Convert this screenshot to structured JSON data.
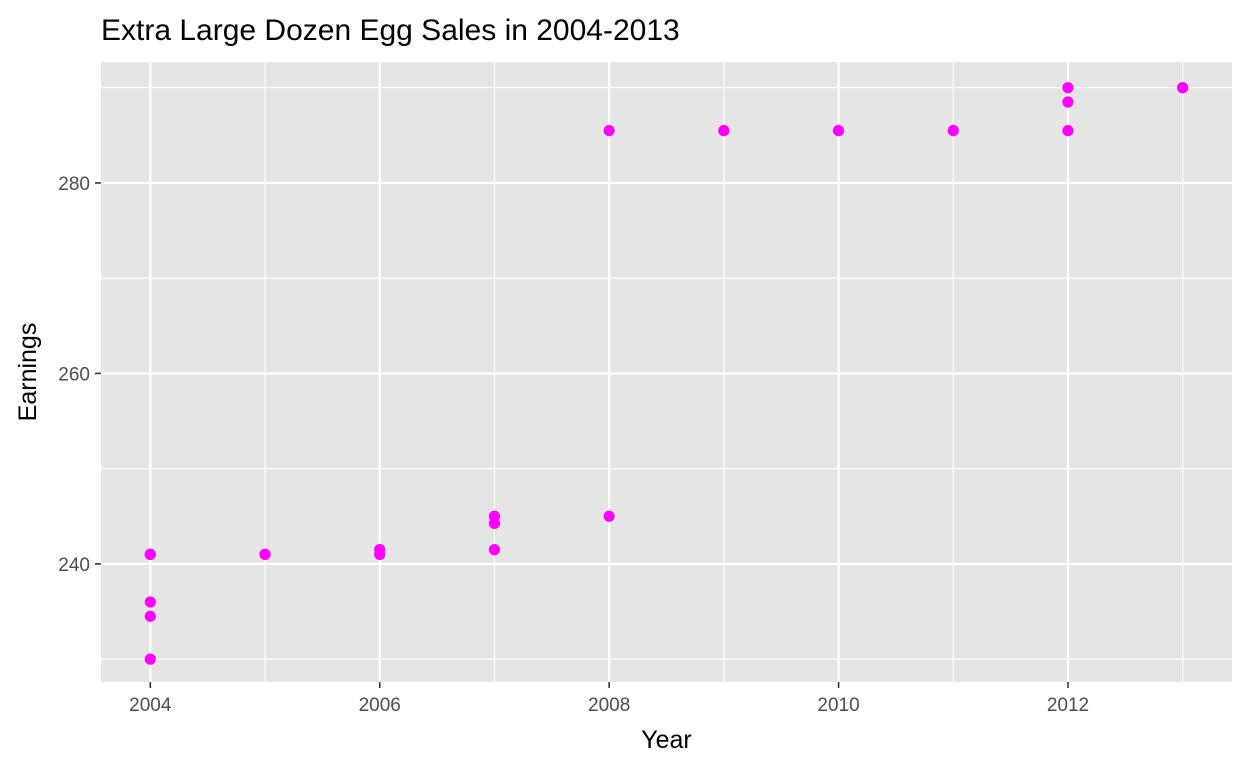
{
  "chart_data": {
    "type": "scatter",
    "title": "Extra Large Dozen Egg Sales in 2004-2013",
    "xlabel": "Year",
    "ylabel": "Earnings",
    "xlim": [
      2003.57,
      2013.43
    ],
    "ylim": [
      227.6,
      292.7
    ],
    "x_ticks": [
      2004,
      2006,
      2008,
      2010,
      2012
    ],
    "y_ticks": [
      240,
      260,
      280
    ],
    "grid": true,
    "legend": "none",
    "colors": {
      "panel_background": "#e5e5e5",
      "grid": "#ffffff",
      "point": "#ff00ff"
    },
    "points": [
      {
        "x": 2004,
        "y": 241.0
      },
      {
        "x": 2004,
        "y": 241.0
      },
      {
        "x": 2004,
        "y": 236.0
      },
      {
        "x": 2004,
        "y": 234.5
      },
      {
        "x": 2004,
        "y": 230.0
      },
      {
        "x": 2005,
        "y": 241.0
      },
      {
        "x": 2005,
        "y": 241.0
      },
      {
        "x": 2006,
        "y": 241.5
      },
      {
        "x": 2006,
        "y": 241.0
      },
      {
        "x": 2007,
        "y": 245.0
      },
      {
        "x": 2007,
        "y": 244.25
      },
      {
        "x": 2007,
        "y": 241.5
      },
      {
        "x": 2008,
        "y": 245.0
      },
      {
        "x": 2008,
        "y": 285.5
      },
      {
        "x": 2009,
        "y": 285.5
      },
      {
        "x": 2009,
        "y": 285.5
      },
      {
        "x": 2010,
        "y": 285.5
      },
      {
        "x": 2010,
        "y": 285.5
      },
      {
        "x": 2011,
        "y": 285.5
      },
      {
        "x": 2011,
        "y": 285.5
      },
      {
        "x": 2012,
        "y": 290.0
      },
      {
        "x": 2012,
        "y": 288.5
      },
      {
        "x": 2012,
        "y": 285.5
      },
      {
        "x": 2013,
        "y": 290.0
      },
      {
        "x": 2013,
        "y": 290.0
      }
    ]
  }
}
